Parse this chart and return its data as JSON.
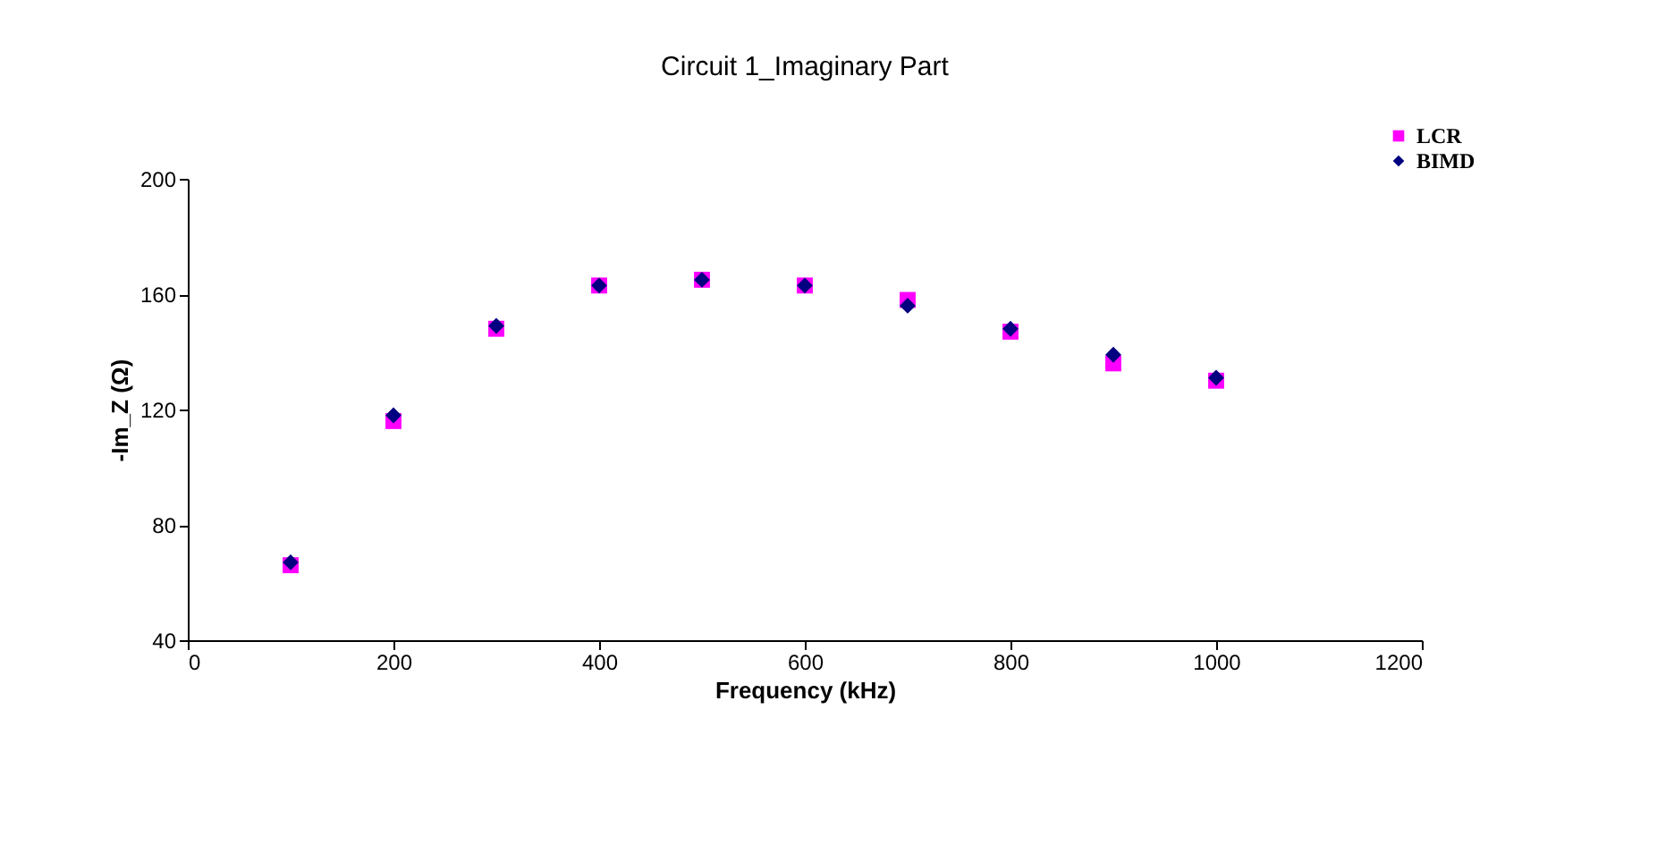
{
  "chart_data": {
    "type": "scatter",
    "title": "Circuit 1_Imaginary Part",
    "xlabel": "Frequency (kHz)",
    "ylabel": "-Im_Z (Ω)",
    "x": [
      100,
      200,
      300,
      400,
      500,
      600,
      700,
      800,
      900,
      1000
    ],
    "series": [
      {
        "name": "LCR",
        "color": "#ff00ff",
        "marker": "square",
        "values": [
          66,
          116,
          148,
          163,
          165,
          163,
          158,
          147,
          136,
          130
        ]
      },
      {
        "name": "BIMD",
        "color": "#000080",
        "marker": "diamond",
        "values": [
          67,
          118,
          149,
          163,
          165,
          163,
          156,
          148,
          139,
          131
        ]
      }
    ],
    "xlim": [
      0,
      1200
    ],
    "xticks": [
      0,
      200,
      400,
      600,
      800,
      1000,
      1200
    ],
    "ylim": [
      40,
      200
    ],
    "yticks": [
      40,
      80,
      120,
      160,
      200
    ],
    "grid": false,
    "legend": "top right"
  }
}
